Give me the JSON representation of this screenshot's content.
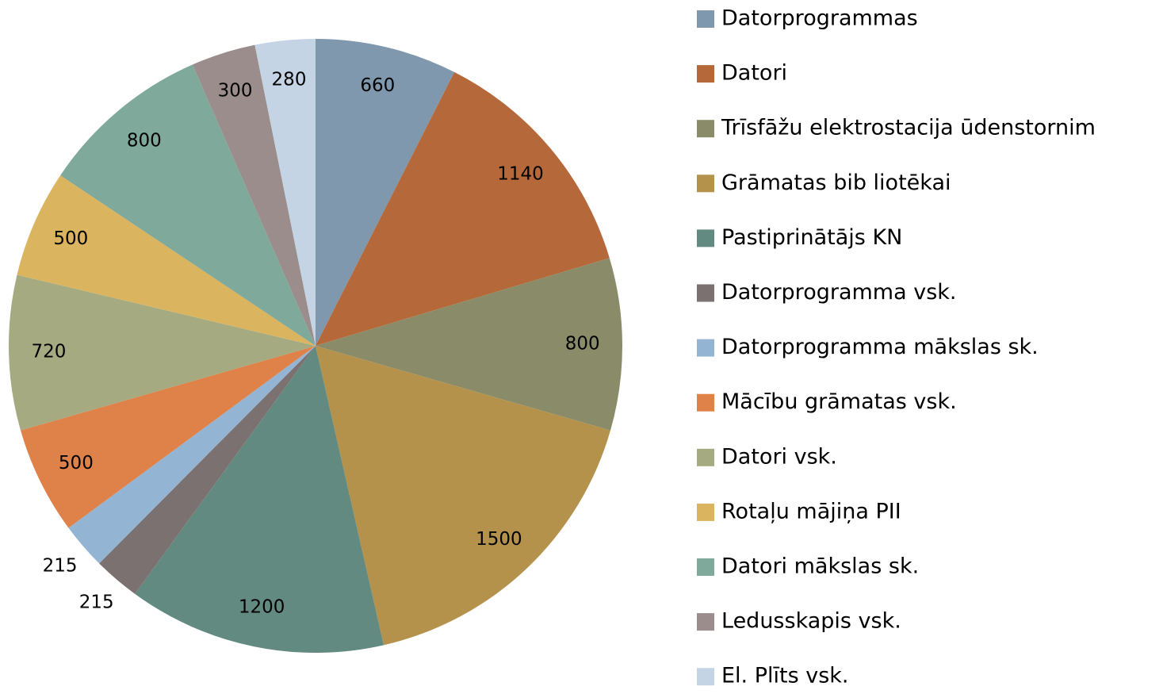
{
  "chart_data": {
    "type": "pie",
    "categories": [
      "Datorprogrammas",
      "Datori",
      "Trīsfāžu elektrostacija ūdenstornim",
      "Grāmatas bib liotēkai",
      "Pastiprinātājs KN",
      "Datorprogramma vsk.",
      "Datorprogramma mākslas sk.",
      "Mācību grāmatas vsk.",
      "Datori vsk.",
      "Rotaļu mājiņa PII",
      "Datori mākslas sk.",
      "Ledusskapis vsk.",
      "El. Plīts vsk."
    ],
    "values": [
      660,
      1140,
      800,
      1500,
      1200,
      215,
      215,
      500,
      720,
      500,
      800,
      300,
      280
    ],
    "colors": [
      "#7f98ae",
      "#b5693a",
      "#8a8c69",
      "#b4924b",
      "#628a80",
      "#7b7171",
      "#94b4d3",
      "#df8249",
      "#a5aa80",
      "#dab45e",
      "#7fa99b",
      "#9a8d8b",
      "#c5d4e4"
    ],
    "legend": "right"
  }
}
